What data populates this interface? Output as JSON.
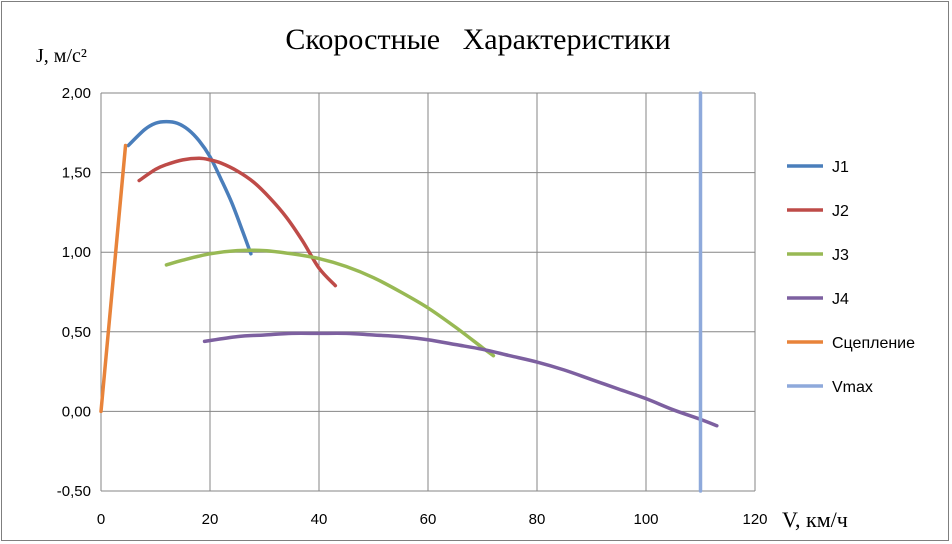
{
  "chart_data": {
    "type": "line",
    "title": "Скоростные   Характеристики",
    "ylabel": "J, м/с²",
    "xlabel": "V, км/ч",
    "xlim": [
      0,
      120
    ],
    "ylim": [
      -0.5,
      2.0
    ],
    "x_ticks": [
      0,
      20,
      40,
      60,
      80,
      100,
      120
    ],
    "x_tick_labels": [
      "0",
      "20",
      "40",
      "60",
      "80",
      "100",
      "120"
    ],
    "y_ticks": [
      -0.5,
      0,
      0.5,
      1.0,
      1.5,
      2.0
    ],
    "y_tick_labels": [
      "-0,50",
      "0,00",
      "0,50",
      "1,00",
      "1,50",
      "2,00"
    ],
    "grid": true,
    "legend_position": "right",
    "colors": {
      "J1": "#4a7ebb",
      "J2": "#be4b48",
      "J3": "#98b954",
      "J4": "#7d60a0",
      "Сцепление": "#e8833a",
      "Vmax": "#8ea9db"
    },
    "series": [
      {
        "name": "J1",
        "x": [
          5,
          8,
          10,
          12,
          14,
          16,
          18,
          20,
          22,
          24,
          26,
          27.5
        ],
        "y": [
          1.67,
          1.77,
          1.81,
          1.82,
          1.81,
          1.77,
          1.7,
          1.6,
          1.46,
          1.31,
          1.13,
          0.99
        ]
      },
      {
        "name": "J2",
        "x": [
          7,
          10,
          12,
          15,
          18,
          20,
          22,
          25,
          28,
          31,
          34,
          37,
          40,
          43
        ],
        "y": [
          1.45,
          1.52,
          1.55,
          1.58,
          1.59,
          1.58,
          1.56,
          1.51,
          1.44,
          1.34,
          1.22,
          1.07,
          0.9,
          0.79
        ]
      },
      {
        "name": "J3",
        "x": [
          12,
          15,
          20,
          25,
          30,
          35,
          40,
          45,
          50,
          55,
          60,
          65,
          70,
          72
        ],
        "y": [
          0.92,
          0.95,
          0.99,
          1.01,
          1.01,
          0.99,
          0.96,
          0.91,
          0.84,
          0.75,
          0.65,
          0.53,
          0.4,
          0.35
        ]
      },
      {
        "name": "J4",
        "x": [
          19,
          25,
          30,
          35,
          40,
          45,
          50,
          55,
          60,
          65,
          70,
          75,
          80,
          85,
          90,
          95,
          100,
          105,
          110,
          113
        ],
        "y": [
          0.44,
          0.47,
          0.48,
          0.49,
          0.49,
          0.49,
          0.48,
          0.47,
          0.45,
          0.42,
          0.39,
          0.35,
          0.31,
          0.26,
          0.2,
          0.14,
          0.08,
          0.01,
          -0.05,
          -0.09
        ]
      },
      {
        "name": "Сцепление",
        "x": [
          0,
          4.5
        ],
        "y": [
          0.0,
          1.67
        ]
      },
      {
        "name": "Vmax",
        "x": [
          110,
          110
        ],
        "y": [
          -0.5,
          2.0
        ]
      }
    ]
  }
}
